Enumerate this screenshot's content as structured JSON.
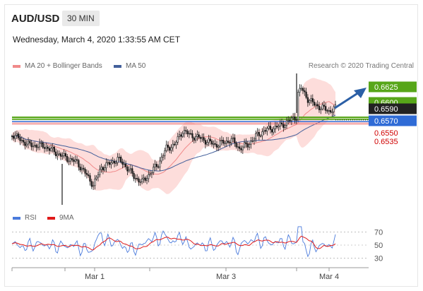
{
  "header": {
    "symbol": "AUD/USD",
    "timeframe": "30 MIN",
    "datetime": "Wednesday, March 4, 2020 1:33:55 AM CET",
    "copyright": "Research © 2020 Trading Central"
  },
  "legend": {
    "ma20_label": "MA 20 + Bollinger Bands",
    "ma50_label": "MA 50",
    "rsi_label": "RSI",
    "ma9_label": "9MA"
  },
  "colors": {
    "bullish_arrow": "#2b5fa6",
    "resistance": "#57a619",
    "pivot": "#2f6bd6",
    "support": "#f08080",
    "bollinger": "#fcd5d2",
    "ma20": "#f08a8a",
    "ma50": "#43609b",
    "rsi": "#4b7bdc",
    "rsi_ma": "#e01a1a",
    "candle": "#1a1a1a"
  },
  "chart_data": [
    {
      "type": "candlestick",
      "x_ticks": [
        "Mar 1",
        "Mar 3",
        "Mar 4"
      ],
      "price_levels": [
        {
          "value": 0.6625,
          "kind": "resistance",
          "label": "0.6625"
        },
        {
          "value": 0.66,
          "kind": "resistance",
          "label": "0.6600"
        },
        {
          "value": 0.659,
          "kind": "current",
          "label": "0.6590"
        },
        {
          "value": 0.657,
          "kind": "pivot",
          "label": "0.6570"
        },
        {
          "value": 0.655,
          "kind": "support",
          "label": "0.6550"
        },
        {
          "value": 0.6535,
          "kind": "support",
          "label": "0.6535"
        }
      ],
      "series": [
        {
          "name": "MA 20 + Bollinger Bands"
        },
        {
          "name": "MA 50"
        }
      ]
    },
    {
      "type": "line",
      "y_ticks": [
        70,
        50,
        30
      ],
      "ylim": [
        20,
        80
      ],
      "series": [
        {
          "name": "RSI"
        },
        {
          "name": "9MA"
        }
      ]
    }
  ]
}
